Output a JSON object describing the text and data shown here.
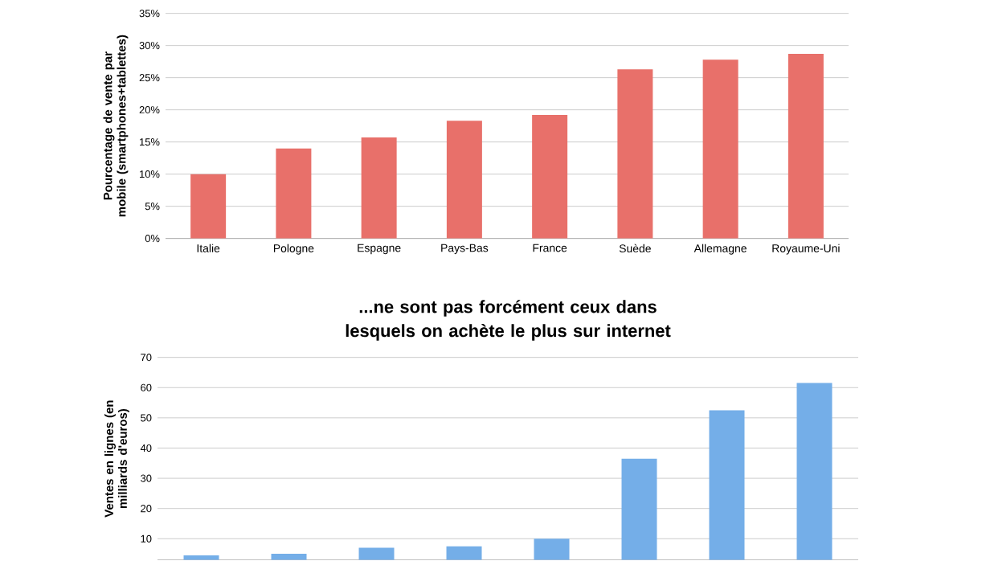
{
  "chart_data": [
    {
      "type": "bar",
      "ylabel": "Pourcentage de vente par mobile (smartphones+tablettes)",
      "categories": [
        "Italie",
        "Pologne",
        "Espagne",
        "Pays-Bas",
        "France",
        "Suède",
        "Allemagne",
        "Royaume-Uni"
      ],
      "values": [
        10,
        14,
        15.7,
        18.3,
        19.2,
        26.3,
        27.8,
        28.7
      ],
      "color": "#e8706a",
      "ylim": [
        0,
        35
      ],
      "yticks": [
        {
          "value": 0,
          "label": "0%"
        },
        {
          "value": 5,
          "label": "5%"
        },
        {
          "value": 10,
          "label": "10%"
        },
        {
          "value": 15,
          "label": "15%"
        },
        {
          "value": 20,
          "label": "20%"
        },
        {
          "value": 25,
          "label": "25%"
        },
        {
          "value": 30,
          "label": "30%"
        },
        {
          "value": 35,
          "label": "35%"
        }
      ],
      "grid": "y"
    },
    {
      "type": "bar",
      "title": "...ne sont pas forcément ceux dans lesquels on achète le plus sur internet",
      "ylabel": "Ventes en lignes (en milliards d'euros)",
      "categories": [
        null,
        null,
        null,
        null,
        null,
        null,
        null,
        null
      ],
      "values": [
        4.5,
        5,
        7,
        7.5,
        10,
        36.5,
        52.5,
        61.5
      ],
      "color": "#74aee8",
      "ylim": [
        3,
        70
      ],
      "yticks": [
        10,
        20,
        30,
        40,
        50,
        60,
        70
      ],
      "grid": "y",
      "tick_labels": "y"
    }
  ]
}
